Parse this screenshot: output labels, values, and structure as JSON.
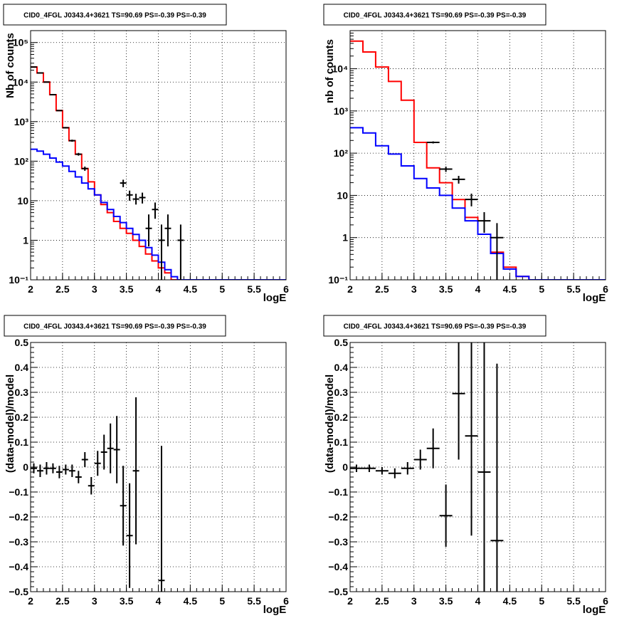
{
  "chart_data": [
    {
      "type": "line",
      "title": "CID0_4FGL J0343.4+3621 TS=90.69 PS=-0.39 PS=-0.39",
      "xlabel": "logE",
      "ylabel": "Nb of counts",
      "yscale": "log",
      "xlim": [
        2,
        6
      ],
      "ylim": [
        0.1,
        200000
      ],
      "xticks": [
        2,
        2.5,
        3,
        3.5,
        4,
        4.5,
        5,
        5.5,
        6
      ],
      "xtick_labels": [
        "2",
        "2.5",
        "3",
        "3.5",
        "4",
        "4.5",
        "5",
        "5.5",
        "6"
      ],
      "yticks": [
        0.1,
        1,
        10,
        100,
        1000,
        10000,
        100000
      ],
      "ytick_labels": [
        "10⁻¹",
        "1",
        "10",
        "10²",
        "10³",
        "10⁴",
        "10⁵"
      ],
      "grid": true,
      "series": [
        {
          "color": "#ff0000",
          "kind": "step",
          "bin_width": 0.1,
          "x_start": 2.0,
          "values": [
            24000,
            17000,
            10000,
            4800,
            1900,
            700,
            330,
            150,
            65,
            30,
            14,
            8,
            5,
            3,
            2,
            1.5,
            1.0,
            0.7,
            0.45,
            0.3,
            0.2,
            0.15,
            0.1,
            0.1,
            0.1,
            0.1,
            0.1,
            0.1,
            0.1,
            0.1,
            0.1,
            0.1,
            0.1,
            0.1,
            0.1,
            0.1,
            0.1,
            0.1,
            0.1,
            0.1
          ]
        },
        {
          "color": "#0000ff",
          "kind": "step",
          "bin_width": 0.1,
          "x_start": 2.0,
          "values": [
            200,
            180,
            150,
            120,
            95,
            75,
            55,
            40,
            28,
            20,
            14,
            9,
            6,
            4,
            2.8,
            2.0,
            1.4,
            1.0,
            0.65,
            0.42,
            0.28,
            0.18,
            0.12,
            0.1,
            0.1,
            0.1,
            0.1,
            0.1,
            0.1,
            0.1,
            0.1,
            0.1,
            0.1,
            0.1,
            0.1,
            0.1,
            0.1,
            0.1,
            0.1,
            0.1
          ]
        },
        {
          "color": "#000000",
          "kind": "errorbar",
          "points": [
            {
              "x": 2.05,
              "y": 24000,
              "lo": 23800,
              "hi": 24200
            },
            {
              "x": 2.15,
              "y": 17000,
              "lo": 16800,
              "hi": 17200
            },
            {
              "x": 2.25,
              "y": 10000,
              "lo": 9800,
              "hi": 10200
            },
            {
              "x": 2.35,
              "y": 4800,
              "lo": 4700,
              "hi": 4900
            },
            {
              "x": 2.45,
              "y": 1900,
              "lo": 1850,
              "hi": 1950
            },
            {
              "x": 2.55,
              "y": 700,
              "lo": 670,
              "hi": 730
            },
            {
              "x": 2.65,
              "y": 330,
              "lo": 310,
              "hi": 350
            },
            {
              "x": 2.75,
              "y": 150,
              "lo": 138,
              "hi": 162
            },
            {
              "x": 2.85,
              "y": 65,
              "lo": 57,
              "hi": 73
            },
            {
              "x": 3.45,
              "y": 28,
              "lo": 22,
              "hi": 34
            },
            {
              "x": 3.55,
              "y": 14,
              "lo": 10,
              "hi": 18
            },
            {
              "x": 3.65,
              "y": 11,
              "lo": 8,
              "hi": 15
            },
            {
              "x": 3.75,
              "y": 12,
              "lo": 8.5,
              "hi": 16
            },
            {
              "x": 3.85,
              "y": 2,
              "lo": 0.7,
              "hi": 4.5
            },
            {
              "x": 3.95,
              "y": 6,
              "lo": 3.5,
              "hi": 9
            },
            {
              "x": 4.05,
              "y": 1,
              "lo": 0.1,
              "hi": 2.5
            },
            {
              "x": 4.15,
              "y": 2,
              "lo": 0.7,
              "hi": 4.5
            },
            {
              "x": 4.35,
              "y": 1,
              "lo": 0.1,
              "hi": 2.5
            }
          ]
        }
      ]
    },
    {
      "type": "line",
      "title": "CID0_4FGL J0343.4+3621 TS=90.69 PS=-0.39 PS=-0.39",
      "xlabel": "logE",
      "ylabel": "nb of counts",
      "yscale": "log",
      "xlim": [
        2,
        6
      ],
      "ylim": [
        0.1,
        80000
      ],
      "xticks": [
        2,
        2.5,
        3,
        3.5,
        4,
        4.5,
        5,
        5.5,
        6
      ],
      "xtick_labels": [
        "2",
        "2.5",
        "3",
        "3.5",
        "4",
        "4.5",
        "5",
        "5.5",
        "6"
      ],
      "yticks": [
        0.1,
        1,
        10,
        100,
        1000,
        10000
      ],
      "ytick_labels": [
        "10⁻¹",
        "1",
        "10",
        "10²",
        "10³",
        "10⁴"
      ],
      "grid": true,
      "series": [
        {
          "color": "#ff0000",
          "kind": "step",
          "bin_width": 0.2,
          "x_start": 2.0,
          "values": [
            45000,
            25000,
            11000,
            5000,
            1800,
            180,
            45,
            20,
            8,
            3,
            1.2,
            0.45,
            0.2,
            0.12,
            0.1,
            0.1,
            0.1,
            0.1,
            0.1,
            0.1
          ]
        },
        {
          "color": "#0000ff",
          "kind": "step",
          "bin_width": 0.2,
          "x_start": 2.0,
          "values": [
            400,
            300,
            150,
            95,
            50,
            25,
            15,
            10,
            5,
            2.5,
            1.2,
            0.42,
            0.18,
            0.12,
            0.1,
            0.1,
            0.1,
            0.1,
            0.1,
            0.1
          ]
        },
        {
          "color": "#000000",
          "kind": "errorbar",
          "points": [
            {
              "x": 3.3,
              "y": 180,
              "lo": 170,
              "hi": 190
            },
            {
              "x": 3.5,
              "y": 42,
              "lo": 36,
              "hi": 48
            },
            {
              "x": 3.7,
              "y": 24,
              "lo": 19,
              "hi": 29
            },
            {
              "x": 3.9,
              "y": 8,
              "lo": 5.5,
              "hi": 11
            },
            {
              "x": 4.1,
              "y": 2.5,
              "lo": 1.3,
              "hi": 4
            },
            {
              "x": 4.3,
              "y": 1,
              "lo": 0.1,
              "hi": 2.2
            }
          ]
        }
      ]
    },
    {
      "type": "scatter",
      "title": "CID0_4FGL J0343.4+3621 TS=90.69 PS=-0.39 PS=-0.39",
      "xlabel": "logE",
      "ylabel": "(data-model)/model",
      "xlim": [
        2,
        6
      ],
      "ylim": [
        -0.5,
        0.5
      ],
      "xticks": [
        2,
        2.5,
        3,
        3.5,
        4,
        4.5,
        5,
        5.5,
        6
      ],
      "xtick_labels": [
        "2",
        "2.5",
        "3",
        "3.5",
        "4",
        "4.5",
        "5",
        "5.5",
        "6"
      ],
      "yticks": [
        -0.5,
        -0.4,
        -0.3,
        -0.2,
        -0.1,
        0,
        0.1,
        0.2,
        0.3,
        0.4,
        0.5
      ],
      "ytick_labels": [
        "−0.5",
        "−0.4",
        "−0.3",
        "−0.2",
        "−0.1",
        "0",
        "0.1",
        "0.2",
        "0.3",
        "0.4",
        "0.5"
      ],
      "grid": true,
      "series": [
        {
          "color": "#000000",
          "kind": "errorbar",
          "bin_width": 0.1,
          "points": [
            {
              "x": 2.05,
              "y": -0.005,
              "err": 0.02
            },
            {
              "x": 2.15,
              "y": -0.015,
              "err": 0.025
            },
            {
              "x": 2.25,
              "y": -0.005,
              "err": 0.025
            },
            {
              "x": 2.35,
              "y": -0.005,
              "err": 0.02
            },
            {
              "x": 2.45,
              "y": -0.02,
              "err": 0.025
            },
            {
              "x": 2.55,
              "y": -0.01,
              "err": 0.02
            },
            {
              "x": 2.65,
              "y": -0.015,
              "err": 0.025
            },
            {
              "x": 2.75,
              "y": -0.04,
              "err": 0.025
            },
            {
              "x": 2.85,
              "y": 0.03,
              "err": 0.03
            },
            {
              "x": 2.95,
              "y": -0.075,
              "err": 0.035
            },
            {
              "x": 3.05,
              "y": 0.015,
              "err": 0.05
            },
            {
              "x": 3.15,
              "y": 0.06,
              "err": 0.07
            },
            {
              "x": 3.25,
              "y": 0.075,
              "err": 0.1
            },
            {
              "x": 3.35,
              "y": 0.07,
              "err": 0.135
            },
            {
              "x": 3.45,
              "y": -0.155,
              "err": 0.16
            },
            {
              "x": 3.55,
              "y": -0.275,
              "err": 0.21
            },
            {
              "x": 3.65,
              "y": -0.015,
              "err": 0.295
            },
            {
              "x": 4.05,
              "y": -0.455,
              "err": 0.54
            }
          ]
        }
      ]
    },
    {
      "type": "scatter",
      "title": "CID0_4FGL J0343.4+3621 TS=90.69 PS=-0.39 PS=-0.39",
      "xlabel": "logE",
      "ylabel": "(data-model)/model",
      "xlim": [
        2,
        6
      ],
      "ylim": [
        -0.5,
        0.5
      ],
      "xticks": [
        2,
        2.5,
        3,
        3.5,
        4,
        4.5,
        5,
        5.5,
        6
      ],
      "xtick_labels": [
        "2",
        "2.5",
        "3",
        "3.5",
        "4",
        "4.5",
        "5",
        "5.5",
        "6"
      ],
      "yticks": [
        -0.5,
        -0.4,
        -0.3,
        -0.2,
        -0.1,
        0,
        0.1,
        0.2,
        0.3,
        0.4,
        0.5
      ],
      "ytick_labels": [
        "−0.5",
        "−0.4",
        "−0.3",
        "−0.2",
        "−0.1",
        "0",
        "0.1",
        "0.2",
        "0.3",
        "0.4",
        "0.5"
      ],
      "grid": true,
      "series": [
        {
          "color": "#000000",
          "kind": "errorbar",
          "bin_width": 0.2,
          "points": [
            {
              "x": 2.1,
              "y": -0.005,
              "err": 0.015
            },
            {
              "x": 2.3,
              "y": -0.005,
              "err": 0.015
            },
            {
              "x": 2.5,
              "y": -0.015,
              "err": 0.015
            },
            {
              "x": 2.7,
              "y": -0.025,
              "err": 0.02
            },
            {
              "x": 2.9,
              "y": -0.005,
              "err": 0.025
            },
            {
              "x": 3.1,
              "y": 0.03,
              "err": 0.04
            },
            {
              "x": 3.3,
              "y": 0.075,
              "err": 0.08
            },
            {
              "x": 3.5,
              "y": -0.195,
              "err": 0.125
            },
            {
              "x": 3.7,
              "y": 0.295,
              "err": 0.265
            },
            {
              "x": 3.9,
              "y": 0.125,
              "err": 0.4
            },
            {
              "x": 4.1,
              "y": -0.02,
              "err": 0.6
            },
            {
              "x": 4.3,
              "y": -0.295,
              "err": 0.71
            }
          ]
        }
      ]
    }
  ]
}
